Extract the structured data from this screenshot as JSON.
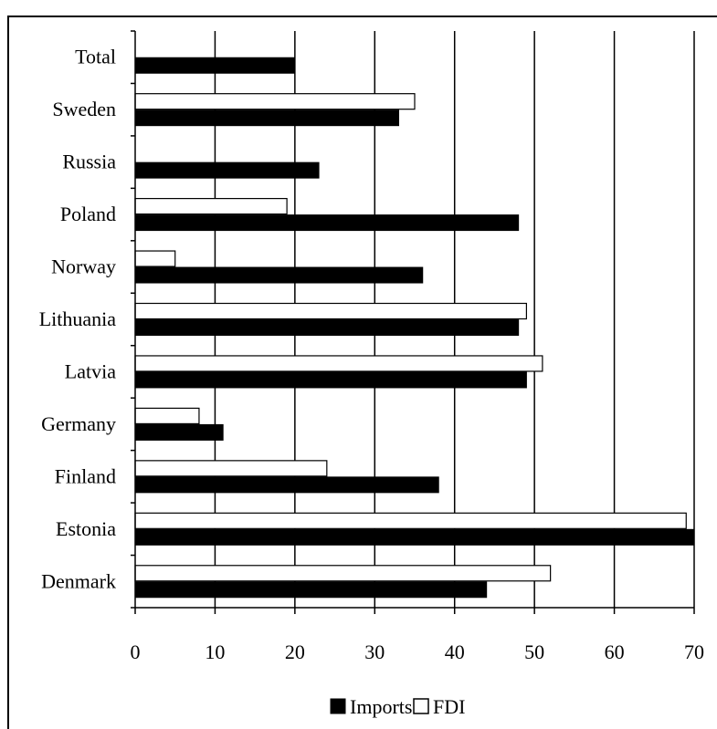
{
  "chart_data": {
    "type": "bar",
    "orientation": "horizontal",
    "categories": [
      "Total",
      "Sweden",
      "Russia",
      "Poland",
      "Norway",
      "Lithuania",
      "Latvia",
      "Germany",
      "Finland",
      "Estonia",
      "Denmark"
    ],
    "series": [
      {
        "name": "Imports",
        "values": [
          20,
          33,
          23,
          48,
          36,
          48,
          49,
          11,
          38,
          70,
          44
        ],
        "color": "#000000"
      },
      {
        "name": "FDI",
        "values": [
          null,
          35,
          null,
          19,
          5,
          49,
          51,
          8,
          24,
          69,
          52
        ],
        "color": "#ffffff"
      }
    ],
    "xlim": [
      0,
      70
    ],
    "xticks": [
      "0",
      "10",
      "20",
      "30",
      "40",
      "50",
      "60",
      "70"
    ],
    "grid": "vertical",
    "legend_position": "bottom"
  }
}
